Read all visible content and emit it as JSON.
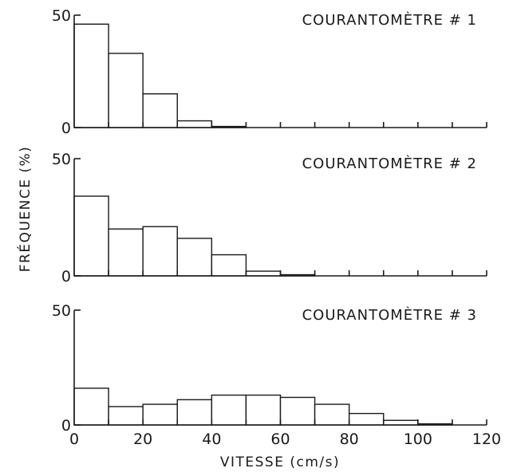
{
  "chart_data": {
    "type": "bar",
    "xlabel": "VITESSE (cm/s)",
    "ylabel": "FRÉQUENCE (%)",
    "xlim": [
      0,
      120
    ],
    "x_ticks": [
      "0",
      "20",
      "40",
      "60",
      "80",
      "100",
      "120"
    ],
    "bin_edges": [
      0,
      10,
      20,
      30,
      40,
      50,
      60,
      70,
      80,
      90,
      100,
      110,
      120
    ],
    "panels": [
      {
        "title": "COURANTOMÈTRE # 1",
        "ylim": [
          0,
          50
        ],
        "y_ticks": [
          "0",
          "50"
        ],
        "values": [
          46,
          33,
          15,
          3,
          0.5,
          0,
          0,
          0,
          0,
          0,
          0,
          0
        ]
      },
      {
        "title": "COURANTOMÈTRE # 2",
        "ylim": [
          0,
          50
        ],
        "y_ticks": [
          "0",
          "50"
        ],
        "values": [
          34,
          20,
          21,
          16,
          9,
          2,
          0.5,
          0,
          0,
          0,
          0,
          0
        ]
      },
      {
        "title": "COURANTOMÈTRE # 3",
        "ylim": [
          0,
          50
        ],
        "y_ticks": [
          "0",
          "50"
        ],
        "values": [
          16,
          8,
          9,
          11,
          13,
          13,
          12,
          9,
          5,
          2,
          0.5,
          0
        ]
      }
    ]
  }
}
